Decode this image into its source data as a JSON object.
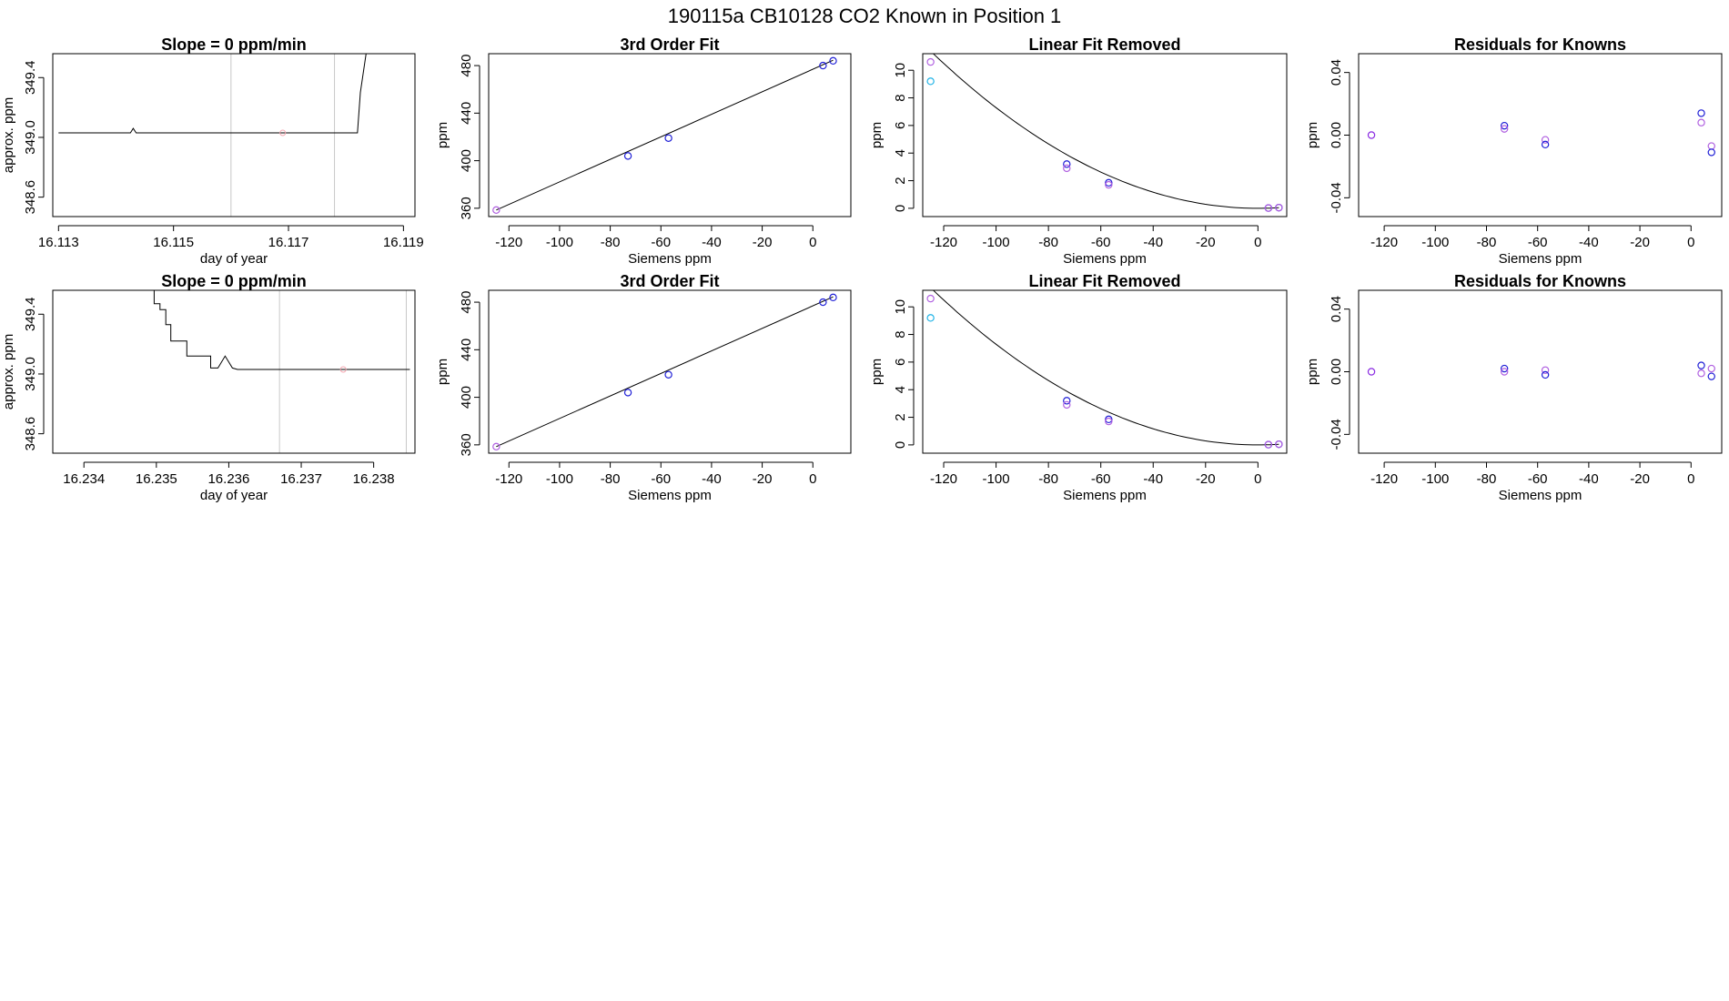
{
  "main_title": "190115a      CB10128    CO2 Known in Position  1",
  "colors": {
    "line": "#000000",
    "frame": "#000000",
    "vline": "#c8c8c8",
    "marker_pink": "#f4a6b0",
    "blue": "#1f1fd6",
    "violet": "#b060e0",
    "purple": "#8a2be2",
    "cyan": "#1fb3e6"
  },
  "chart_data": [
    {
      "type": "line",
      "title": "Slope =  0  ppm/min",
      "xlabel": "day of year",
      "ylabel": "approx. ppm",
      "xlim": [
        16.1129,
        16.1192
      ],
      "ylim": [
        348.47,
        349.56
      ],
      "xticks": [
        16.113,
        16.115,
        16.117,
        16.119
      ],
      "xtick_labels": [
        "16.113",
        "16.115",
        "16.117",
        "16.119"
      ],
      "yticks": [
        348.6,
        349.0,
        349.4
      ],
      "ytick_labels": [
        "348.6",
        "349.0",
        "349.4"
      ],
      "series": [
        {
          "x": [
            16.113,
            16.11425,
            16.1143,
            16.11435,
            16.1182,
            16.11825,
            16.11835
          ],
          "y": [
            349.03,
            349.03,
            349.06,
            349.03,
            349.03,
            349.3,
            349.56
          ]
        }
      ],
      "vlines": [
        16.116,
        16.1178
      ],
      "marker": {
        "x": 16.1169,
        "y": 349.03
      }
    },
    {
      "type": "scatter",
      "title": "3rd Order Fit",
      "xlabel": "Siemens ppm",
      "ylabel": "ppm",
      "xlim": [
        -128,
        15
      ],
      "ylim": [
        353,
        490
      ],
      "xticks": [
        -120,
        -100,
        -80,
        -60,
        -40,
        -20,
        0
      ],
      "xtick_labels": [
        "-120",
        "-100",
        "-80",
        "-60",
        "-40",
        "-20",
        "0"
      ],
      "yticks": [
        360,
        400,
        440,
        480
      ],
      "ytick_labels": [
        "360",
        "400",
        "440",
        "480"
      ],
      "fit": {
        "x1": -125,
        "y1": 358.5,
        "x2": 8,
        "y2": 484.5
      },
      "points": [
        {
          "x": -125,
          "y": 358.5,
          "color": "violet"
        },
        {
          "x": -73,
          "y": 404,
          "color": "blue"
        },
        {
          "x": -57,
          "y": 419,
          "color": "blue"
        },
        {
          "x": 4,
          "y": 480,
          "color": "blue"
        },
        {
          "x": 8,
          "y": 484,
          "color": "blue"
        }
      ]
    },
    {
      "type": "scatter",
      "title": "Linear Fit Removed",
      "xlabel": "Siemens ppm",
      "ylabel": "ppm",
      "xlim": [
        -128,
        11
      ],
      "ylim": [
        -0.6,
        11.2
      ],
      "xticks": [
        -120,
        -100,
        -80,
        -60,
        -40,
        -20,
        0
      ],
      "xtick_labels": [
        "-120",
        "-100",
        "-80",
        "-60",
        "-40",
        "-20",
        "0"
      ],
      "yticks": [
        0,
        2,
        4,
        6,
        8,
        10
      ],
      "ytick_labels": [
        "0",
        "2",
        "4",
        "6",
        "8",
        "10"
      ],
      "curve": {
        "a": 0.000729,
        "vertex": 0,
        "xmin": -125,
        "xmax": 8
      },
      "points": [
        {
          "x": -125,
          "y": 10.6,
          "color": "violet"
        },
        {
          "x": -125,
          "y": 9.2,
          "color": "cyan"
        },
        {
          "x": -73,
          "y": 3.2,
          "color": "blue"
        },
        {
          "x": -73,
          "y": 2.9,
          "color": "violet"
        },
        {
          "x": -57,
          "y": 1.85,
          "color": "blue"
        },
        {
          "x": -57,
          "y": 1.7,
          "color": "violet"
        },
        {
          "x": 4,
          "y": 0.02,
          "color": "blue"
        },
        {
          "x": 4,
          "y": 0.02,
          "color": "violet"
        },
        {
          "x": 8,
          "y": 0.05,
          "color": "blue"
        },
        {
          "x": 8,
          "y": 0.05,
          "color": "violet"
        }
      ]
    },
    {
      "type": "scatter",
      "title": "Residuals for Knowns",
      "xlabel": "Siemens ppm",
      "ylabel": "ppm",
      "xlim": [
        -130,
        12
      ],
      "ylim": [
        -0.052,
        0.052
      ],
      "xticks": [
        -120,
        -100,
        -80,
        -60,
        -40,
        -20,
        0
      ],
      "xtick_labels": [
        "-120",
        "-100",
        "-80",
        "-60",
        "-40",
        "-20",
        "0"
      ],
      "yticks": [
        -0.04,
        0.0,
        0.04
      ],
      "ytick_labels": [
        "-0.04",
        "0.00",
        "0.04"
      ],
      "points": [
        {
          "x": -125,
          "y": 0.0,
          "color": "purple"
        },
        {
          "x": -73,
          "y": 0.006,
          "color": "blue"
        },
        {
          "x": -73,
          "y": 0.004,
          "color": "violet"
        },
        {
          "x": -57,
          "y": -0.003,
          "color": "violet"
        },
        {
          "x": -57,
          "y": -0.006,
          "color": "blue"
        },
        {
          "x": 4,
          "y": 0.014,
          "color": "blue"
        },
        {
          "x": 4,
          "y": 0.008,
          "color": "violet"
        },
        {
          "x": 8,
          "y": -0.007,
          "color": "violet"
        },
        {
          "x": 8,
          "y": -0.011,
          "color": "blue"
        }
      ]
    },
    {
      "type": "line",
      "title": "Slope =  0  ppm/min",
      "xlabel": "day of year",
      "ylabel": "approx. ppm",
      "xlim": [
        16.23357,
        16.23857
      ],
      "ylim": [
        348.47,
        349.56
      ],
      "xticks": [
        16.234,
        16.235,
        16.236,
        16.237,
        16.238
      ],
      "xtick_labels": [
        "16.234",
        "16.235",
        "16.236",
        "16.237",
        "16.238"
      ],
      "yticks": [
        348.6,
        349.0,
        349.4
      ],
      "ytick_labels": [
        "348.6",
        "349.0",
        "349.4"
      ],
      "series": [
        {
          "x": [
            16.23492,
            16.23497,
            16.23497,
            16.23505,
            16.23505,
            16.23513,
            16.23513,
            16.2352,
            16.2352,
            16.23542,
            16.23542,
            16.2356,
            16.2356,
            16.23575,
            16.23575,
            16.23585,
            16.23595,
            16.23605,
            16.23612,
            16.2385
          ],
          "y": [
            349.56,
            349.56,
            349.47,
            349.47,
            349.43,
            349.43,
            349.33,
            349.33,
            349.22,
            349.22,
            349.12,
            349.12,
            349.12,
            349.12,
            349.04,
            349.04,
            349.12,
            349.04,
            349.03,
            349.03
          ]
        }
      ],
      "vlines": [
        16.2367,
        16.23845
      ],
      "marker": {
        "x": 16.23758,
        "y": 349.03
      }
    },
    {
      "type": "scatter",
      "title": "3rd Order Fit",
      "xlabel": "Siemens ppm",
      "ylabel": "ppm",
      "xlim": [
        -128,
        15
      ],
      "ylim": [
        353,
        490
      ],
      "xticks": [
        -120,
        -100,
        -80,
        -60,
        -40,
        -20,
        0
      ],
      "xtick_labels": [
        "-120",
        "-100",
        "-80",
        "-60",
        "-40",
        "-20",
        "0"
      ],
      "yticks": [
        360,
        400,
        440,
        480
      ],
      "ytick_labels": [
        "360",
        "400",
        "440",
        "480"
      ],
      "fit": {
        "x1": -125,
        "y1": 358.5,
        "x2": 8,
        "y2": 484.5
      },
      "points": [
        {
          "x": -125,
          "y": 358.5,
          "color": "violet"
        },
        {
          "x": -73,
          "y": 404,
          "color": "blue"
        },
        {
          "x": -57,
          "y": 419,
          "color": "blue"
        },
        {
          "x": 4,
          "y": 480,
          "color": "blue"
        },
        {
          "x": 8,
          "y": 484,
          "color": "blue"
        }
      ]
    },
    {
      "type": "scatter",
      "title": "Linear Fit Removed",
      "xlabel": "Siemens ppm",
      "ylabel": "ppm",
      "xlim": [
        -128,
        11
      ],
      "ylim": [
        -0.6,
        11.2
      ],
      "xticks": [
        -120,
        -100,
        -80,
        -60,
        -40,
        -20,
        0
      ],
      "xtick_labels": [
        "-120",
        "-100",
        "-80",
        "-60",
        "-40",
        "-20",
        "0"
      ],
      "yticks": [
        0,
        2,
        4,
        6,
        8,
        10
      ],
      "ytick_labels": [
        "0",
        "2",
        "4",
        "6",
        "8",
        "10"
      ],
      "curve": {
        "a": 0.000729,
        "vertex": 0,
        "xmin": -125,
        "xmax": 8
      },
      "points": [
        {
          "x": -125,
          "y": 10.6,
          "color": "violet"
        },
        {
          "x": -125,
          "y": 9.2,
          "color": "cyan"
        },
        {
          "x": -73,
          "y": 3.2,
          "color": "blue"
        },
        {
          "x": -73,
          "y": 2.9,
          "color": "violet"
        },
        {
          "x": -57,
          "y": 1.85,
          "color": "blue"
        },
        {
          "x": -57,
          "y": 1.7,
          "color": "violet"
        },
        {
          "x": 4,
          "y": 0.02,
          "color": "blue"
        },
        {
          "x": 4,
          "y": 0.02,
          "color": "violet"
        },
        {
          "x": 8,
          "y": 0.05,
          "color": "blue"
        },
        {
          "x": 8,
          "y": 0.05,
          "color": "violet"
        }
      ]
    },
    {
      "type": "scatter",
      "title": "Residuals for Knowns",
      "xlabel": "Siemens ppm",
      "ylabel": "ppm",
      "xlim": [
        -130,
        12
      ],
      "ylim": [
        -0.052,
        0.052
      ],
      "xticks": [
        -120,
        -100,
        -80,
        -60,
        -40,
        -20,
        0
      ],
      "xtick_labels": [
        "-120",
        "-100",
        "-80",
        "-60",
        "-40",
        "-20",
        "0"
      ],
      "yticks": [
        -0.04,
        0.0,
        0.04
      ],
      "ytick_labels": [
        "-0.04",
        "0.00",
        "0.04"
      ],
      "points": [
        {
          "x": -125,
          "y": 0.0,
          "color": "purple"
        },
        {
          "x": -73,
          "y": 0.002,
          "color": "blue"
        },
        {
          "x": -73,
          "y": 0.0,
          "color": "violet"
        },
        {
          "x": -57,
          "y": 0.001,
          "color": "violet"
        },
        {
          "x": -57,
          "y": -0.002,
          "color": "blue"
        },
        {
          "x": 4,
          "y": 0.004,
          "color": "blue"
        },
        {
          "x": 4,
          "y": -0.001,
          "color": "violet"
        },
        {
          "x": 8,
          "y": 0.002,
          "color": "violet"
        },
        {
          "x": 8,
          "y": -0.003,
          "color": "blue"
        }
      ]
    }
  ]
}
